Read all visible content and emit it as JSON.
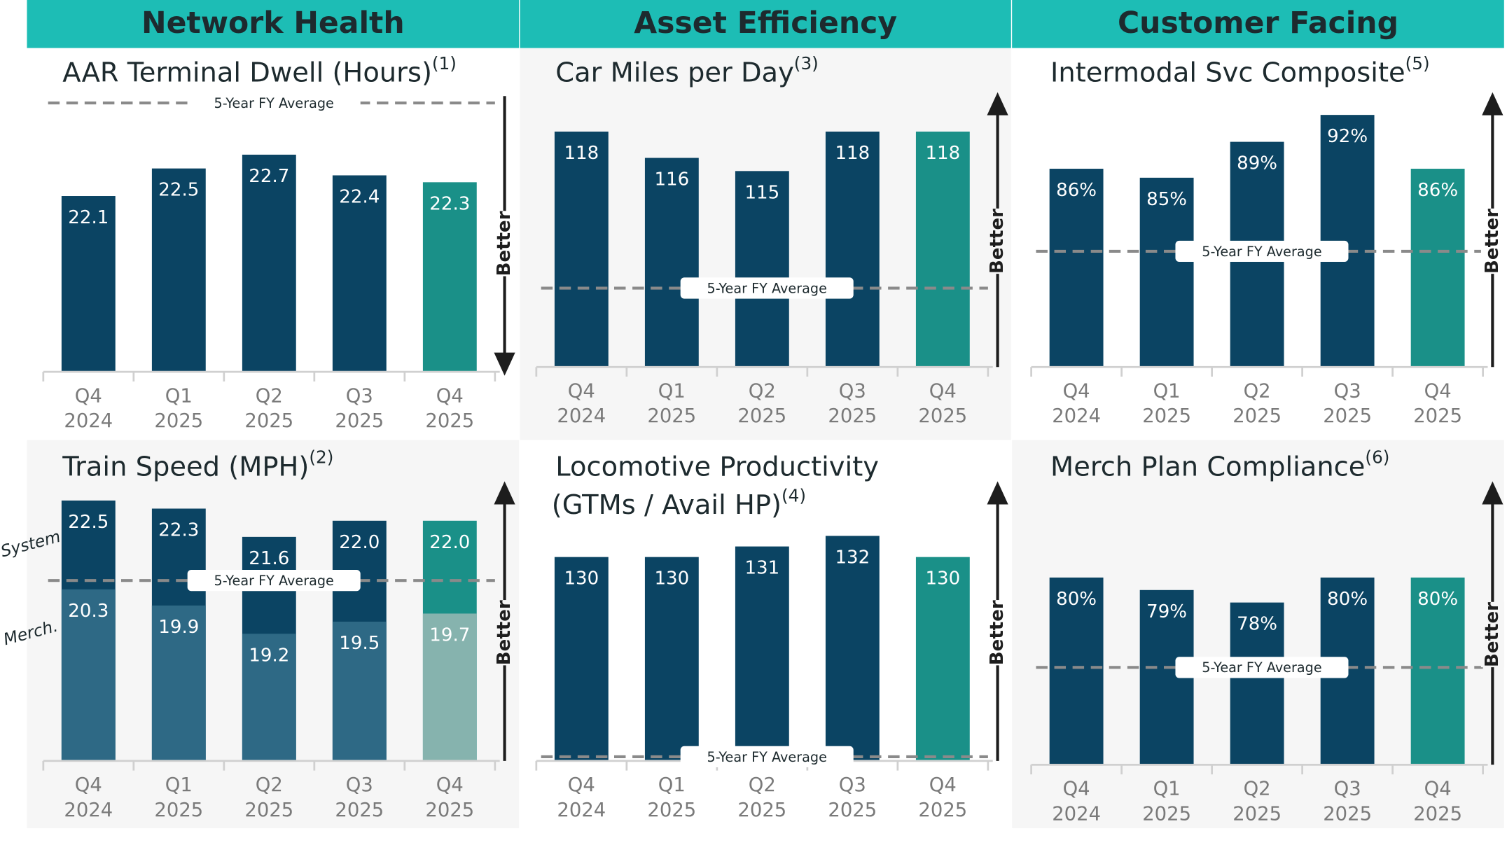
{
  "sections": [
    "Network Health",
    "Asset Efficiency",
    "Customer Facing"
  ],
  "chart_data": [
    {
      "type": "bar",
      "title": "AAR Terminal Dwell (Hours)",
      "note": "(1)",
      "categories": [
        [
          "Q4",
          "2024"
        ],
        [
          "Q1",
          "2025"
        ],
        [
          "Q2",
          "2025"
        ],
        [
          "Q3",
          "2025"
        ],
        [
          "Q4",
          "2025"
        ]
      ],
      "series": [
        {
          "values": [
            22.1,
            22.5,
            22.7,
            22.4,
            22.3
          ],
          "colors": [
            "#0b4463",
            "#0b4463",
            "#0b4463",
            "#0b4463",
            "#1a9088"
          ]
        }
      ],
      "ylim": [
        19.55,
        23.55
      ],
      "average": {
        "label": "5-Year FY Average",
        "value": 23.45
      },
      "better": {
        "label": "Better",
        "direction": "down"
      }
    },
    {
      "type": "bar",
      "title": "Car Miles per Day",
      "note": "(3)",
      "categories": [
        [
          "Q4",
          "2024"
        ],
        [
          "Q1",
          "2025"
        ],
        [
          "Q2",
          "2025"
        ],
        [
          "Q3",
          "2025"
        ],
        [
          "Q4",
          "2025"
        ]
      ],
      "series": [
        {
          "values": [
            118,
            116,
            115,
            118,
            118
          ],
          "colors": [
            "#0b4463",
            "#0b4463",
            "#0b4463",
            "#0b4463",
            "#1a9088"
          ]
        }
      ],
      "ylim": [
        100.1,
        120.7
      ],
      "average": {
        "label": "5-Year FY Average",
        "value": 106.1
      },
      "better": {
        "label": "Better",
        "direction": "up"
      }
    },
    {
      "type": "bar",
      "title": "Intermodal Svc Composite",
      "note": "(5)",
      "categories": [
        [
          "Q4",
          "2024"
        ],
        [
          "Q1",
          "2025"
        ],
        [
          "Q2",
          "2025"
        ],
        [
          "Q3",
          "2025"
        ],
        [
          "Q4",
          "2025"
        ]
      ],
      "series": [
        {
          "values": [
            86,
            85,
            89,
            92,
            86
          ],
          "value_labels": [
            "86%",
            "85%",
            "89%",
            "92%",
            "86%"
          ],
          "colors": [
            "#0b4463",
            "#0b4463",
            "#0b4463",
            "#0b4463",
            "#1a9088"
          ]
        }
      ],
      "ylim": [
        63.9,
        94.1
      ],
      "average": {
        "label": "5-Year FY Average",
        "value": 76.8
      },
      "better": {
        "label": "Better",
        "direction": "up"
      }
    },
    {
      "type": "bar",
      "title": "Train Speed (MPH)",
      "note": "(2)",
      "categories": [
        [
          "Q4",
          "2024"
        ],
        [
          "Q1",
          "2025"
        ],
        [
          "Q2",
          "2025"
        ],
        [
          "Q3",
          "2025"
        ],
        [
          "Q4",
          "2025"
        ]
      ],
      "series": [
        {
          "name": "System",
          "values": [
            22.5,
            22.3,
            21.6,
            22.0,
            22.0
          ],
          "value_labels": [
            "22.5",
            "22.3",
            "21.6",
            "22.0",
            "22.0"
          ],
          "colors": [
            "#0b4463",
            "#0b4463",
            "#0b4463",
            "#0b4463",
            "#1a9088"
          ]
        },
        {
          "name": "Merch.",
          "values": [
            20.3,
            19.9,
            19.2,
            19.5,
            19.7
          ],
          "colors": [
            "#2e6985",
            "#2e6985",
            "#2e6985",
            "#2e6985",
            "#86b3ae"
          ]
        }
      ],
      "ylim": [
        16.05,
        22.88
      ],
      "average": {
        "label": "5-Year FY Average",
        "value": 20.52
      },
      "better": {
        "label": "Better",
        "direction": "up"
      }
    },
    {
      "type": "bar",
      "title": "Locomotive Productivity",
      "subtitle": "(GTMs / Avail HP)",
      "note": "(4)",
      "categories": [
        [
          "Q4",
          "2024"
        ],
        [
          "Q1",
          "2025"
        ],
        [
          "Q2",
          "2025"
        ],
        [
          "Q3",
          "2025"
        ],
        [
          "Q4",
          "2025"
        ]
      ],
      "series": [
        {
          "values": [
            130,
            130,
            131,
            132,
            130
          ],
          "colors": [
            "#0b4463",
            "#0b4463",
            "#0b4463",
            "#0b4463",
            "#1a9088"
          ]
        }
      ],
      "ylim": [
        110.7,
        136.8
      ],
      "average": {
        "label": "5-Year FY Average",
        "value": 111.1
      },
      "better": {
        "label": "Better",
        "direction": "up"
      }
    },
    {
      "type": "bar",
      "title": "Merch Plan Compliance",
      "note": "(6)",
      "categories": [
        [
          "Q4",
          "2024"
        ],
        [
          "Q1",
          "2025"
        ],
        [
          "Q2",
          "2025"
        ],
        [
          "Q3",
          "2025"
        ],
        [
          "Q4",
          "2025"
        ]
      ],
      "series": [
        {
          "values": [
            80,
            79,
            78,
            80,
            80
          ],
          "value_labels": [
            "80%",
            "79%",
            "78%",
            "80%",
            "80%"
          ],
          "colors": [
            "#0b4463",
            "#0b4463",
            "#0b4463",
            "#0b4463",
            "#1a9088"
          ]
        }
      ],
      "ylim": [
        65,
        87.4
      ],
      "average": {
        "label": "5-Year FY Average",
        "value": 72.8
      },
      "better": {
        "label": "Better",
        "direction": "up"
      }
    }
  ]
}
